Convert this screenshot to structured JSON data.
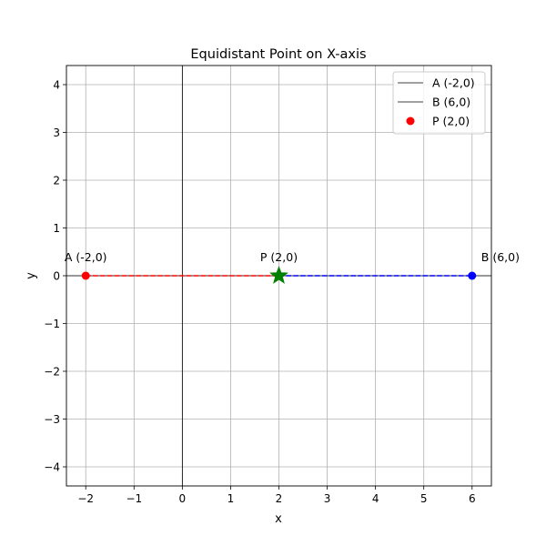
{
  "chart_data": {
    "type": "scatter",
    "title": "Equidistant Point on X-axis",
    "xlabel": "x",
    "ylabel": "y",
    "xlim": [
      -2.4,
      6.4
    ],
    "ylim": [
      -4.4,
      4.4
    ],
    "xticks": [
      -2,
      -1,
      0,
      1,
      2,
      3,
      4,
      5,
      6
    ],
    "yticks": [
      -4,
      -3,
      -2,
      -1,
      0,
      1,
      2,
      3,
      4
    ],
    "xtick_labels": [
      "−2",
      "−1",
      "0",
      "1",
      "2",
      "3",
      "4",
      "5",
      "6"
    ],
    "ytick_labels": [
      "−4",
      "−3",
      "−2",
      "−1",
      "0",
      "1",
      "2",
      "3",
      "4"
    ],
    "grid": true,
    "legend_position": "top-right",
    "legend": [
      {
        "label": "A (-2,0)",
        "kind": "line",
        "color": "#000000"
      },
      {
        "label": "B (6,0)",
        "kind": "line",
        "color": "#000000"
      },
      {
        "label": "P (2,0)",
        "kind": "marker",
        "color": "#ff0000"
      }
    ],
    "reference_lines": [
      {
        "axis": "x",
        "value": 0,
        "color": "#000000"
      },
      {
        "axis": "y",
        "value": 0,
        "color": "#000000"
      }
    ],
    "segments": [
      {
        "from": [
          -2,
          0
        ],
        "to": [
          2,
          0
        ],
        "color": "#ff0000",
        "style": "dashed"
      },
      {
        "from": [
          2,
          0
        ],
        "to": [
          6,
          0
        ],
        "color": "#0000ff",
        "style": "dashed"
      }
    ],
    "points": [
      {
        "x": -2,
        "y": 0,
        "color": "#ff0000",
        "marker": "circle",
        "label": "A (-2,0)"
      },
      {
        "x": 6,
        "y": 0,
        "color": "#0000ff",
        "marker": "circle",
        "label": "B (6,0)"
      },
      {
        "x": 2,
        "y": 0,
        "color": "#008000",
        "marker": "star",
        "label": "P (2,0)"
      }
    ]
  }
}
